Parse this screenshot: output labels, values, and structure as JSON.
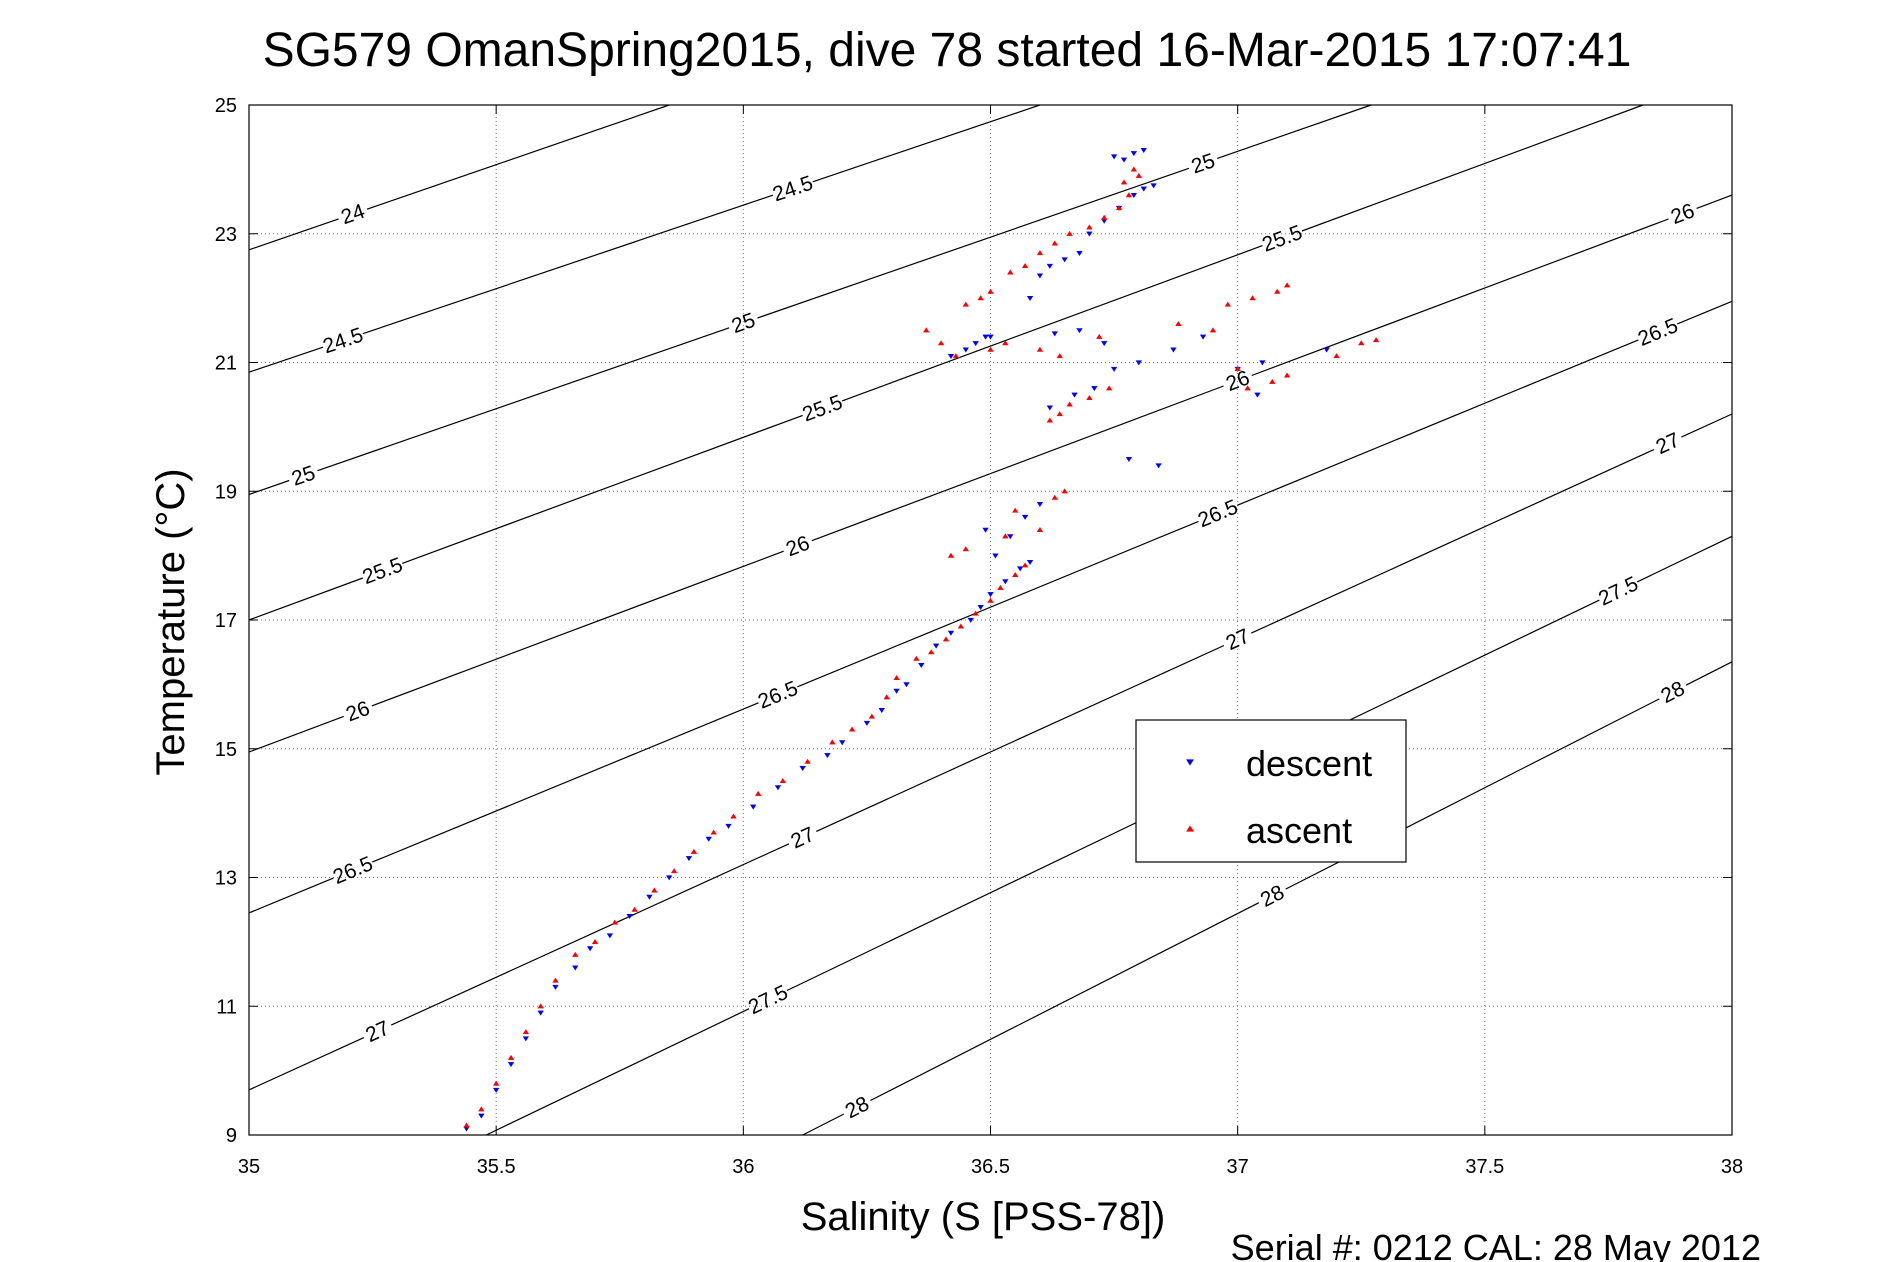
{
  "chart_data": {
    "type": "scatter",
    "title": "SG579 OmanSpring2015, dive 78 started 16-Mar-2015 17:07:41",
    "xlabel": "Salinity (S [PSS-78])",
    "ylabel": "Temperature (°C)",
    "xlim": [
      35,
      38
    ],
    "ylim": [
      9,
      25
    ],
    "xticks": [
      "35",
      "35.5",
      "36",
      "36.5",
      "37",
      "37.5",
      "38"
    ],
    "yticks": [
      "9",
      "11",
      "13",
      "15",
      "17",
      "19",
      "21",
      "23",
      "25"
    ],
    "grid": true,
    "legend_position": "center-right",
    "footer": "Serial #: 0212  CAL: 28 May 2012",
    "colors": {
      "descent": "#0000ff",
      "ascent": "#ff0000",
      "contour": "#000000"
    },
    "density_contours": [
      {
        "sigma": 24,
        "label": "24",
        "s0": 35.0,
        "t0": 22.75,
        "s1": 35.85,
        "t1": 25.0,
        "labels_at": [
          35.21
        ]
      },
      {
        "sigma": 24.5,
        "label": "24.5",
        "s0": 35.0,
        "t0": 20.85,
        "s1": 36.6,
        "t1": 25.0,
        "labels_at": [
          35.19,
          36.1
        ]
      },
      {
        "sigma": 25,
        "label": "25",
        "s0": 35.0,
        "t0": 18.95,
        "s1": 37.27,
        "t1": 25.0,
        "labels_at": [
          35.11,
          36.0,
          36.93
        ]
      },
      {
        "sigma": 25.5,
        "label": "25.5",
        "s0": 35.0,
        "t0": 17.0,
        "s1": 37.82,
        "t1": 25.0,
        "labels_at": [
          35.27,
          36.16,
          37.09
        ]
      },
      {
        "sigma": 26,
        "label": "26",
        "s0": 35.0,
        "t0": 14.95,
        "s1": 38.0,
        "t1": 23.6,
        "labels_at": [
          35.22,
          36.11,
          37.0,
          37.9
        ]
      },
      {
        "sigma": 26.5,
        "label": "26.5",
        "s0": 35.0,
        "t0": 12.45,
        "s1": 38.0,
        "t1": 21.95,
        "labels_at": [
          35.21,
          36.07,
          36.96,
          37.85
        ]
      },
      {
        "sigma": 27,
        "label": "27",
        "s0": 35.0,
        "t0": 9.7,
        "s1": 38.0,
        "t1": 20.2,
        "labels_at": [
          35.26,
          36.12,
          37.0,
          37.87
        ]
      },
      {
        "sigma": 27.5,
        "label": "27.5",
        "s0": 35.48,
        "t0": 9.0,
        "s1": 38.0,
        "t1": 18.3,
        "labels_at": [
          36.05,
          36.97,
          37.77
        ]
      },
      {
        "sigma": 28,
        "label": "28",
        "s0": 36.12,
        "t0": 9.0,
        "s1": 38.0,
        "t1": 16.35,
        "labels_at": [
          36.23,
          37.07,
          37.88
        ]
      }
    ],
    "series": [
      {
        "name": "descent",
        "marker": "triangle-down",
        "points": [
          [
            35.44,
            9.1
          ],
          [
            35.47,
            9.3
          ],
          [
            35.5,
            9.7
          ],
          [
            35.53,
            10.1
          ],
          [
            35.56,
            10.5
          ],
          [
            35.59,
            10.9
          ],
          [
            35.62,
            11.3
          ],
          [
            35.66,
            11.6
          ],
          [
            35.69,
            11.9
          ],
          [
            35.73,
            12.1
          ],
          [
            35.77,
            12.4
          ],
          [
            35.81,
            12.7
          ],
          [
            35.85,
            13.0
          ],
          [
            35.89,
            13.3
          ],
          [
            35.93,
            13.6
          ],
          [
            35.97,
            13.8
          ],
          [
            36.02,
            14.1
          ],
          [
            36.07,
            14.4
          ],
          [
            36.12,
            14.7
          ],
          [
            36.17,
            14.9
          ],
          [
            36.2,
            15.1
          ],
          [
            36.25,
            15.4
          ],
          [
            36.28,
            15.6
          ],
          [
            36.31,
            15.9
          ],
          [
            36.33,
            16.0
          ],
          [
            36.36,
            16.3
          ],
          [
            36.39,
            16.6
          ],
          [
            36.42,
            16.8
          ],
          [
            36.46,
            17.0
          ],
          [
            36.48,
            17.2
          ],
          [
            36.5,
            17.4
          ],
          [
            36.53,
            17.6
          ],
          [
            36.56,
            17.8
          ],
          [
            36.58,
            17.9
          ],
          [
            36.51,
            18.0
          ],
          [
            36.54,
            18.3
          ],
          [
            36.49,
            18.4
          ],
          [
            36.57,
            18.6
          ],
          [
            36.6,
            18.8
          ],
          [
            36.62,
            20.3
          ],
          [
            36.67,
            20.5
          ],
          [
            36.71,
            20.6
          ],
          [
            36.75,
            20.9
          ],
          [
            36.8,
            21.0
          ],
          [
            36.84,
            19.4
          ],
          [
            36.78,
            19.5
          ],
          [
            36.47,
            21.3
          ],
          [
            36.49,
            21.4
          ],
          [
            36.45,
            21.2
          ],
          [
            36.42,
            21.1
          ],
          [
            36.5,
            21.4
          ],
          [
            36.63,
            21.45
          ],
          [
            36.68,
            21.5
          ],
          [
            36.73,
            21.3
          ],
          [
            36.87,
            21.2
          ],
          [
            36.93,
            21.4
          ],
          [
            37.0,
            20.9
          ],
          [
            37.05,
            21.0
          ],
          [
            37.18,
            21.2
          ],
          [
            37.04,
            20.5
          ],
          [
            36.58,
            22.0
          ],
          [
            36.6,
            22.35
          ],
          [
            36.62,
            22.5
          ],
          [
            36.65,
            22.6
          ],
          [
            36.68,
            22.7
          ],
          [
            36.7,
            23.0
          ],
          [
            36.73,
            23.2
          ],
          [
            36.76,
            23.4
          ],
          [
            36.79,
            23.6
          ],
          [
            36.81,
            23.7
          ],
          [
            36.83,
            23.75
          ],
          [
            36.75,
            24.2
          ],
          [
            36.79,
            24.25
          ],
          [
            36.81,
            24.3
          ],
          [
            36.77,
            24.15
          ]
        ]
      },
      {
        "name": "ascent",
        "marker": "triangle-up",
        "points": [
          [
            35.44,
            9.15
          ],
          [
            35.47,
            9.4
          ],
          [
            35.5,
            9.8
          ],
          [
            35.53,
            10.2
          ],
          [
            35.56,
            10.6
          ],
          [
            35.59,
            11.0
          ],
          [
            35.62,
            11.4
          ],
          [
            35.66,
            11.8
          ],
          [
            35.7,
            12.0
          ],
          [
            35.74,
            12.3
          ],
          [
            35.78,
            12.5
          ],
          [
            35.82,
            12.8
          ],
          [
            35.86,
            13.1
          ],
          [
            35.9,
            13.4
          ],
          [
            35.94,
            13.7
          ],
          [
            35.98,
            13.95
          ],
          [
            36.03,
            14.3
          ],
          [
            36.08,
            14.5
          ],
          [
            36.13,
            14.8
          ],
          [
            36.18,
            15.1
          ],
          [
            36.22,
            15.3
          ],
          [
            36.26,
            15.5
          ],
          [
            36.29,
            15.8
          ],
          [
            36.31,
            16.1
          ],
          [
            36.35,
            16.4
          ],
          [
            36.38,
            16.5
          ],
          [
            36.41,
            16.7
          ],
          [
            36.44,
            16.9
          ],
          [
            36.47,
            17.1
          ],
          [
            36.5,
            17.3
          ],
          [
            36.52,
            17.5
          ],
          [
            36.55,
            17.7
          ],
          [
            36.57,
            17.85
          ],
          [
            36.42,
            18.0
          ],
          [
            36.45,
            18.1
          ],
          [
            36.53,
            18.3
          ],
          [
            36.6,
            18.4
          ],
          [
            36.55,
            18.7
          ],
          [
            36.63,
            18.9
          ],
          [
            36.65,
            19.0
          ],
          [
            36.62,
            20.1
          ],
          [
            36.64,
            20.2
          ],
          [
            36.66,
            20.35
          ],
          [
            36.7,
            20.45
          ],
          [
            36.74,
            20.6
          ],
          [
            37.0,
            20.9
          ],
          [
            37.07,
            20.7
          ],
          [
            37.1,
            20.8
          ],
          [
            37.02,
            20.6
          ],
          [
            37.2,
            21.1
          ],
          [
            37.25,
            21.3
          ],
          [
            37.28,
            21.35
          ],
          [
            36.37,
            21.5
          ],
          [
            36.4,
            21.3
          ],
          [
            36.43,
            21.1
          ],
          [
            36.5,
            21.2
          ],
          [
            36.53,
            21.3
          ],
          [
            36.6,
            21.2
          ],
          [
            36.64,
            21.1
          ],
          [
            36.72,
            21.4
          ],
          [
            36.88,
            21.6
          ],
          [
            36.95,
            21.5
          ],
          [
            36.98,
            21.9
          ],
          [
            37.03,
            22.0
          ],
          [
            37.08,
            22.1
          ],
          [
            37.1,
            22.2
          ],
          [
            36.45,
            21.9
          ],
          [
            36.48,
            22.0
          ],
          [
            36.5,
            22.1
          ],
          [
            36.54,
            22.4
          ],
          [
            36.57,
            22.5
          ],
          [
            36.6,
            22.7
          ],
          [
            36.63,
            22.85
          ],
          [
            36.66,
            23.0
          ],
          [
            36.7,
            23.1
          ],
          [
            36.73,
            23.25
          ],
          [
            36.76,
            23.4
          ],
          [
            36.78,
            23.6
          ],
          [
            36.77,
            23.8
          ],
          [
            36.79,
            24.0
          ],
          [
            36.8,
            23.9
          ]
        ]
      }
    ]
  }
}
